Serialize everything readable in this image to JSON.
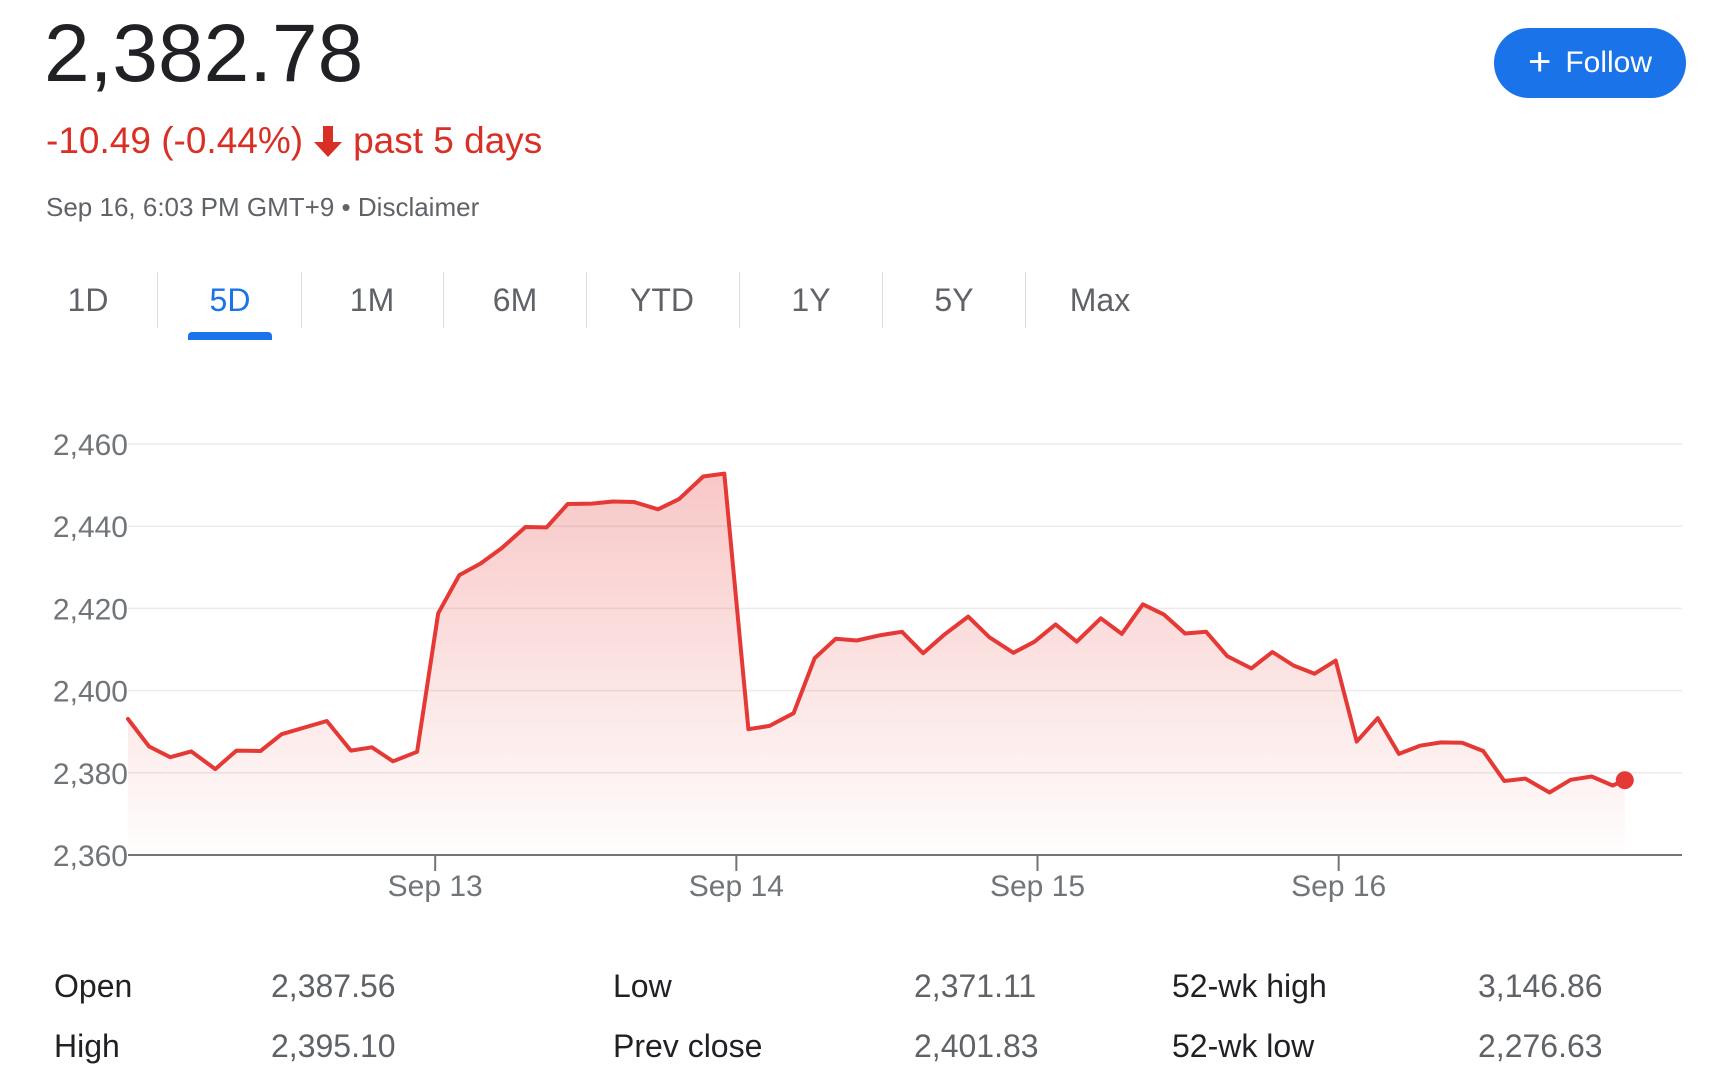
{
  "header": {
    "price": "2,382.78",
    "change": "-10.49 (-0.44%)",
    "period": "past 5 days",
    "timestamp": "Sep 16, 6:03 PM GMT+9",
    "separator": "•",
    "disclaimer": "Disclaimer",
    "follow_label": "Follow",
    "follow_icon": "plus-icon",
    "change_icon": "arrow-down-icon"
  },
  "colors": {
    "negative": "#d93025",
    "accent": "#1a73e8",
    "line": "#e53935"
  },
  "tabs": [
    {
      "label": "1D",
      "active": false
    },
    {
      "label": "5D",
      "active": true
    },
    {
      "label": "1M",
      "active": false
    },
    {
      "label": "6M",
      "active": false
    },
    {
      "label": "YTD",
      "active": false
    },
    {
      "label": "1Y",
      "active": false
    },
    {
      "label": "5Y",
      "active": false
    },
    {
      "label": "Max",
      "active": false
    }
  ],
  "chart_data": {
    "type": "area",
    "grid": true,
    "ylim": [
      2360,
      2460
    ],
    "yticks": [
      2460,
      2440,
      2420,
      2400,
      2380,
      2360
    ],
    "ytick_labels": [
      "2,460",
      "2,440",
      "2,420",
      "2,400",
      "2,380",
      "2,360"
    ],
    "xlim": [
      -1.02,
      4.14
    ],
    "xticks": [
      0,
      1,
      2,
      3
    ],
    "xtick_labels": [
      "Sep 13",
      "Sep 14",
      "Sep 15",
      "Sep 16"
    ],
    "series": [
      {
        "values": [
          [
            -1.02,
            2393.1
          ],
          [
            -0.95,
            2386.4
          ],
          [
            -0.88,
            2383.8
          ],
          [
            -0.81,
            2385.2
          ],
          [
            -0.73,
            2380.9
          ],
          [
            -0.66,
            2385.4
          ],
          [
            -0.58,
            2385.3
          ],
          [
            -0.51,
            2389.4
          ],
          [
            -0.36,
            2392.6
          ],
          [
            -0.28,
            2385.4
          ],
          [
            -0.21,
            2386.2
          ],
          [
            -0.14,
            2382.8
          ],
          [
            -0.06,
            2385.1
          ],
          [
            0.01,
            2418.8
          ],
          [
            0.08,
            2428.1
          ],
          [
            0.15,
            2430.9
          ],
          [
            0.22,
            2434.6
          ],
          [
            0.3,
            2439.8
          ],
          [
            0.37,
            2439.7
          ],
          [
            0.44,
            2445.4
          ],
          [
            0.52,
            2445.5
          ],
          [
            0.59,
            2446.0
          ],
          [
            0.66,
            2445.9
          ],
          [
            0.74,
            2444.1
          ],
          [
            0.81,
            2446.6
          ],
          [
            0.89,
            2452.1
          ],
          [
            0.96,
            2452.8
          ],
          [
            1.04,
            2390.6
          ],
          [
            1.11,
            2391.4
          ],
          [
            1.19,
            2394.5
          ],
          [
            1.26,
            2407.9
          ],
          [
            1.33,
            2412.6
          ],
          [
            1.4,
            2412.2
          ],
          [
            1.48,
            2413.5
          ],
          [
            1.55,
            2414.3
          ],
          [
            1.62,
            2409.1
          ],
          [
            1.69,
            2413.6
          ],
          [
            1.77,
            2418.0
          ],
          [
            1.84,
            2413.0
          ],
          [
            1.92,
            2409.2
          ],
          [
            1.99,
            2411.9
          ],
          [
            2.06,
            2416.1
          ],
          [
            2.13,
            2411.9
          ],
          [
            2.21,
            2417.6
          ],
          [
            2.28,
            2413.8
          ],
          [
            2.35,
            2421.0
          ],
          [
            2.42,
            2418.5
          ],
          [
            2.49,
            2413.9
          ],
          [
            2.56,
            2414.3
          ],
          [
            2.63,
            2408.4
          ],
          [
            2.71,
            2405.4
          ],
          [
            2.78,
            2409.4
          ],
          [
            2.85,
            2406.1
          ],
          [
            2.92,
            2404.1
          ],
          [
            2.99,
            2407.3
          ],
          [
            3.06,
            2387.6
          ],
          [
            3.13,
            2393.3
          ],
          [
            3.2,
            2384.6
          ],
          [
            3.27,
            2386.6
          ],
          [
            3.34,
            2387.4
          ],
          [
            3.41,
            2387.3
          ],
          [
            3.48,
            2385.3
          ],
          [
            3.55,
            2378.0
          ],
          [
            3.62,
            2378.6
          ],
          [
            3.7,
            2375.2
          ],
          [
            3.77,
            2378.3
          ],
          [
            3.84,
            2379.1
          ],
          [
            3.91,
            2376.9
          ],
          [
            3.95,
            2378.2
          ]
        ]
      }
    ]
  },
  "stats": [
    {
      "label": "Open",
      "value": "2,387.56"
    },
    {
      "label": "High",
      "value": "2,395.10"
    },
    {
      "label": "Low",
      "value": "2,371.11"
    },
    {
      "label": "Prev close",
      "value": "2,401.83"
    },
    {
      "label": "52-wk high",
      "value": "3,146.86"
    },
    {
      "label": "52-wk low",
      "value": "2,276.63"
    }
  ]
}
